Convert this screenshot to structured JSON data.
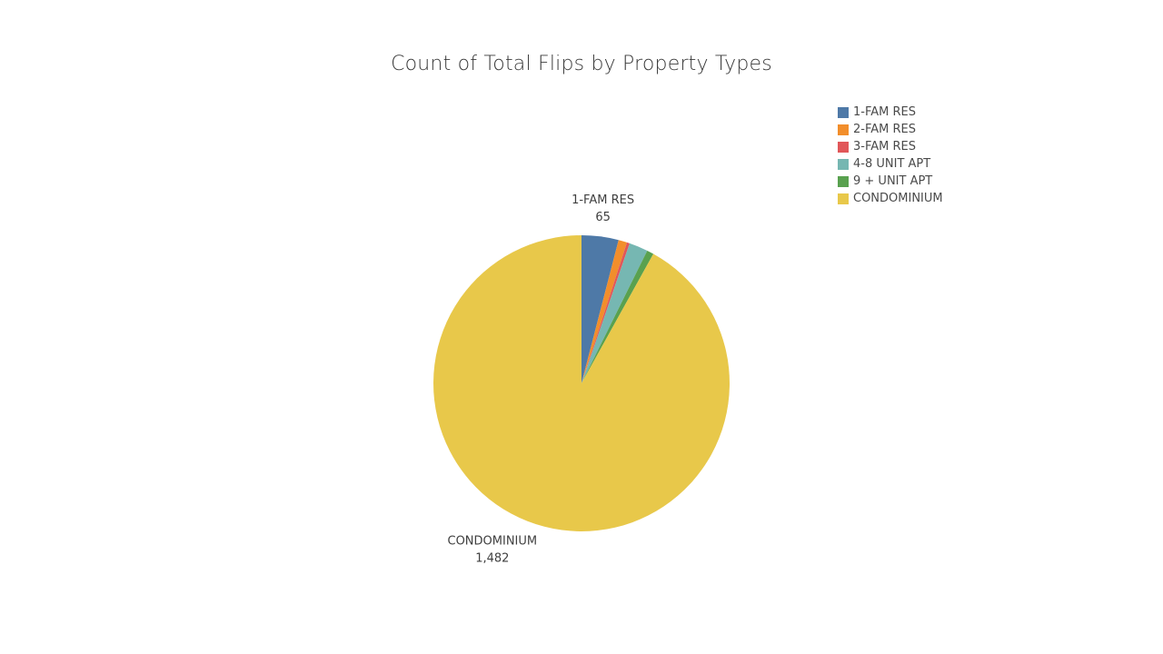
{
  "chart_data": {
    "type": "pie",
    "title": "Count of Total Flips by Property Types",
    "legend_position": "top-right",
    "categories": [
      "1-FAM RES",
      "2-FAM RES",
      "3-FAM RES",
      "4-8 UNIT APT",
      "9 + UNIT APT",
      "CONDOMINIUM"
    ],
    "values": [
      65,
      15,
      5,
      33,
      12,
      1482
    ],
    "colors": [
      "#4e79a7",
      "#f28e2b",
      "#e15759",
      "#76b7b2",
      "#59a14f",
      "#e8c84a"
    ],
    "data_labels": [
      {
        "category": "1-FAM RES",
        "value_text": "65"
      },
      {
        "category": "CONDOMINIUM",
        "value_text": "1,482"
      }
    ]
  }
}
